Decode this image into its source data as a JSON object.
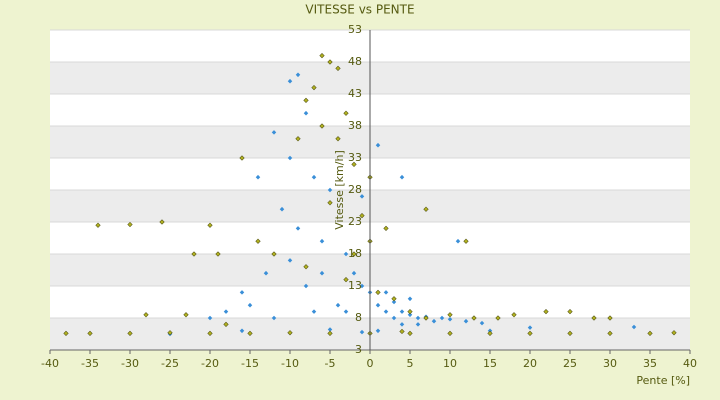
{
  "chart_data": {
    "type": "scatter",
    "title": "VITESSE vs PENTE",
    "x_label": "Pente [%]",
    "y_label": "Vitesse [km/h]",
    "xlim": [
      -40,
      40
    ],
    "xticks": [
      -40,
      -35,
      -30,
      -25,
      -20,
      -15,
      -10,
      -5,
      0,
      5,
      10,
      15,
      20,
      25,
      30,
      35,
      40
    ],
    "ylim": [
      3,
      53
    ],
    "yticks": [
      3,
      8,
      13,
      18,
      23,
      28,
      33,
      38,
      43,
      48,
      53
    ],
    "grid": true,
    "series": [
      {
        "color": "#3a8fd8",
        "x": [
          -10,
          -9,
          -8,
          -12,
          -10,
          -7,
          -5,
          -14,
          -11,
          -9,
          -6,
          -3,
          -2,
          -1,
          0,
          -16,
          -13,
          -8,
          -4,
          -20,
          -18,
          -15,
          -12,
          -7,
          -3,
          1,
          2,
          3,
          4,
          5,
          6,
          7,
          8,
          9,
          10,
          12,
          14,
          3,
          5,
          2,
          4,
          6,
          1,
          -1,
          -25,
          -16,
          -10,
          -5,
          15,
          20,
          33,
          11,
          4,
          1,
          -1,
          -10,
          -6
        ],
        "values": [
          45,
          46,
          40,
          37,
          33,
          30,
          28,
          30,
          25,
          22,
          20,
          18,
          15,
          13,
          12,
          12,
          15,
          13,
          10,
          8,
          9,
          10,
          8,
          9,
          9,
          10,
          9,
          8,
          9,
          8.5,
          8,
          8.2,
          7.5,
          8,
          7.8,
          7.5,
          7.2,
          10.5,
          11,
          12,
          7,
          7,
          6,
          5.8,
          5.5,
          6,
          5.7,
          6.2,
          6,
          6.5,
          6.6,
          20,
          30,
          35,
          27,
          17,
          15
        ]
      },
      {
        "color": "#b0b020",
        "x": [
          -6,
          -5,
          -4,
          -7,
          -8,
          -3,
          -6,
          -4,
          -9,
          -16,
          -2,
          0,
          -5,
          -1,
          0,
          2,
          -34,
          -30,
          -26,
          -20,
          -19,
          -22,
          -14,
          -12,
          -8,
          -3,
          1,
          3,
          5,
          7,
          10,
          13,
          16,
          18,
          22,
          25,
          28,
          30,
          -28,
          -23,
          -18,
          -35,
          -30,
          -25,
          -20,
          -15,
          -10,
          -5,
          0,
          5,
          10,
          15,
          20,
          25,
          30,
          35,
          38,
          -38,
          12,
          7,
          -2,
          4
        ],
        "values": [
          49,
          48,
          47,
          44,
          42,
          40,
          38,
          36,
          36,
          33,
          32,
          30,
          26,
          24,
          20,
          22,
          22.5,
          22.6,
          23,
          22.5,
          18,
          18,
          20,
          18,
          16,
          14,
          12,
          11,
          9,
          8,
          8.5,
          8,
          8,
          8.5,
          9,
          9,
          8,
          8,
          8.5,
          8.5,
          7,
          5.6,
          5.6,
          5.7,
          5.6,
          5.6,
          5.7,
          5.6,
          5.6,
          5.6,
          5.6,
          5.6,
          5.6,
          5.6,
          5.6,
          5.6,
          5.7,
          5.6,
          20,
          25,
          18,
          5.9
        ]
      }
    ]
  }
}
